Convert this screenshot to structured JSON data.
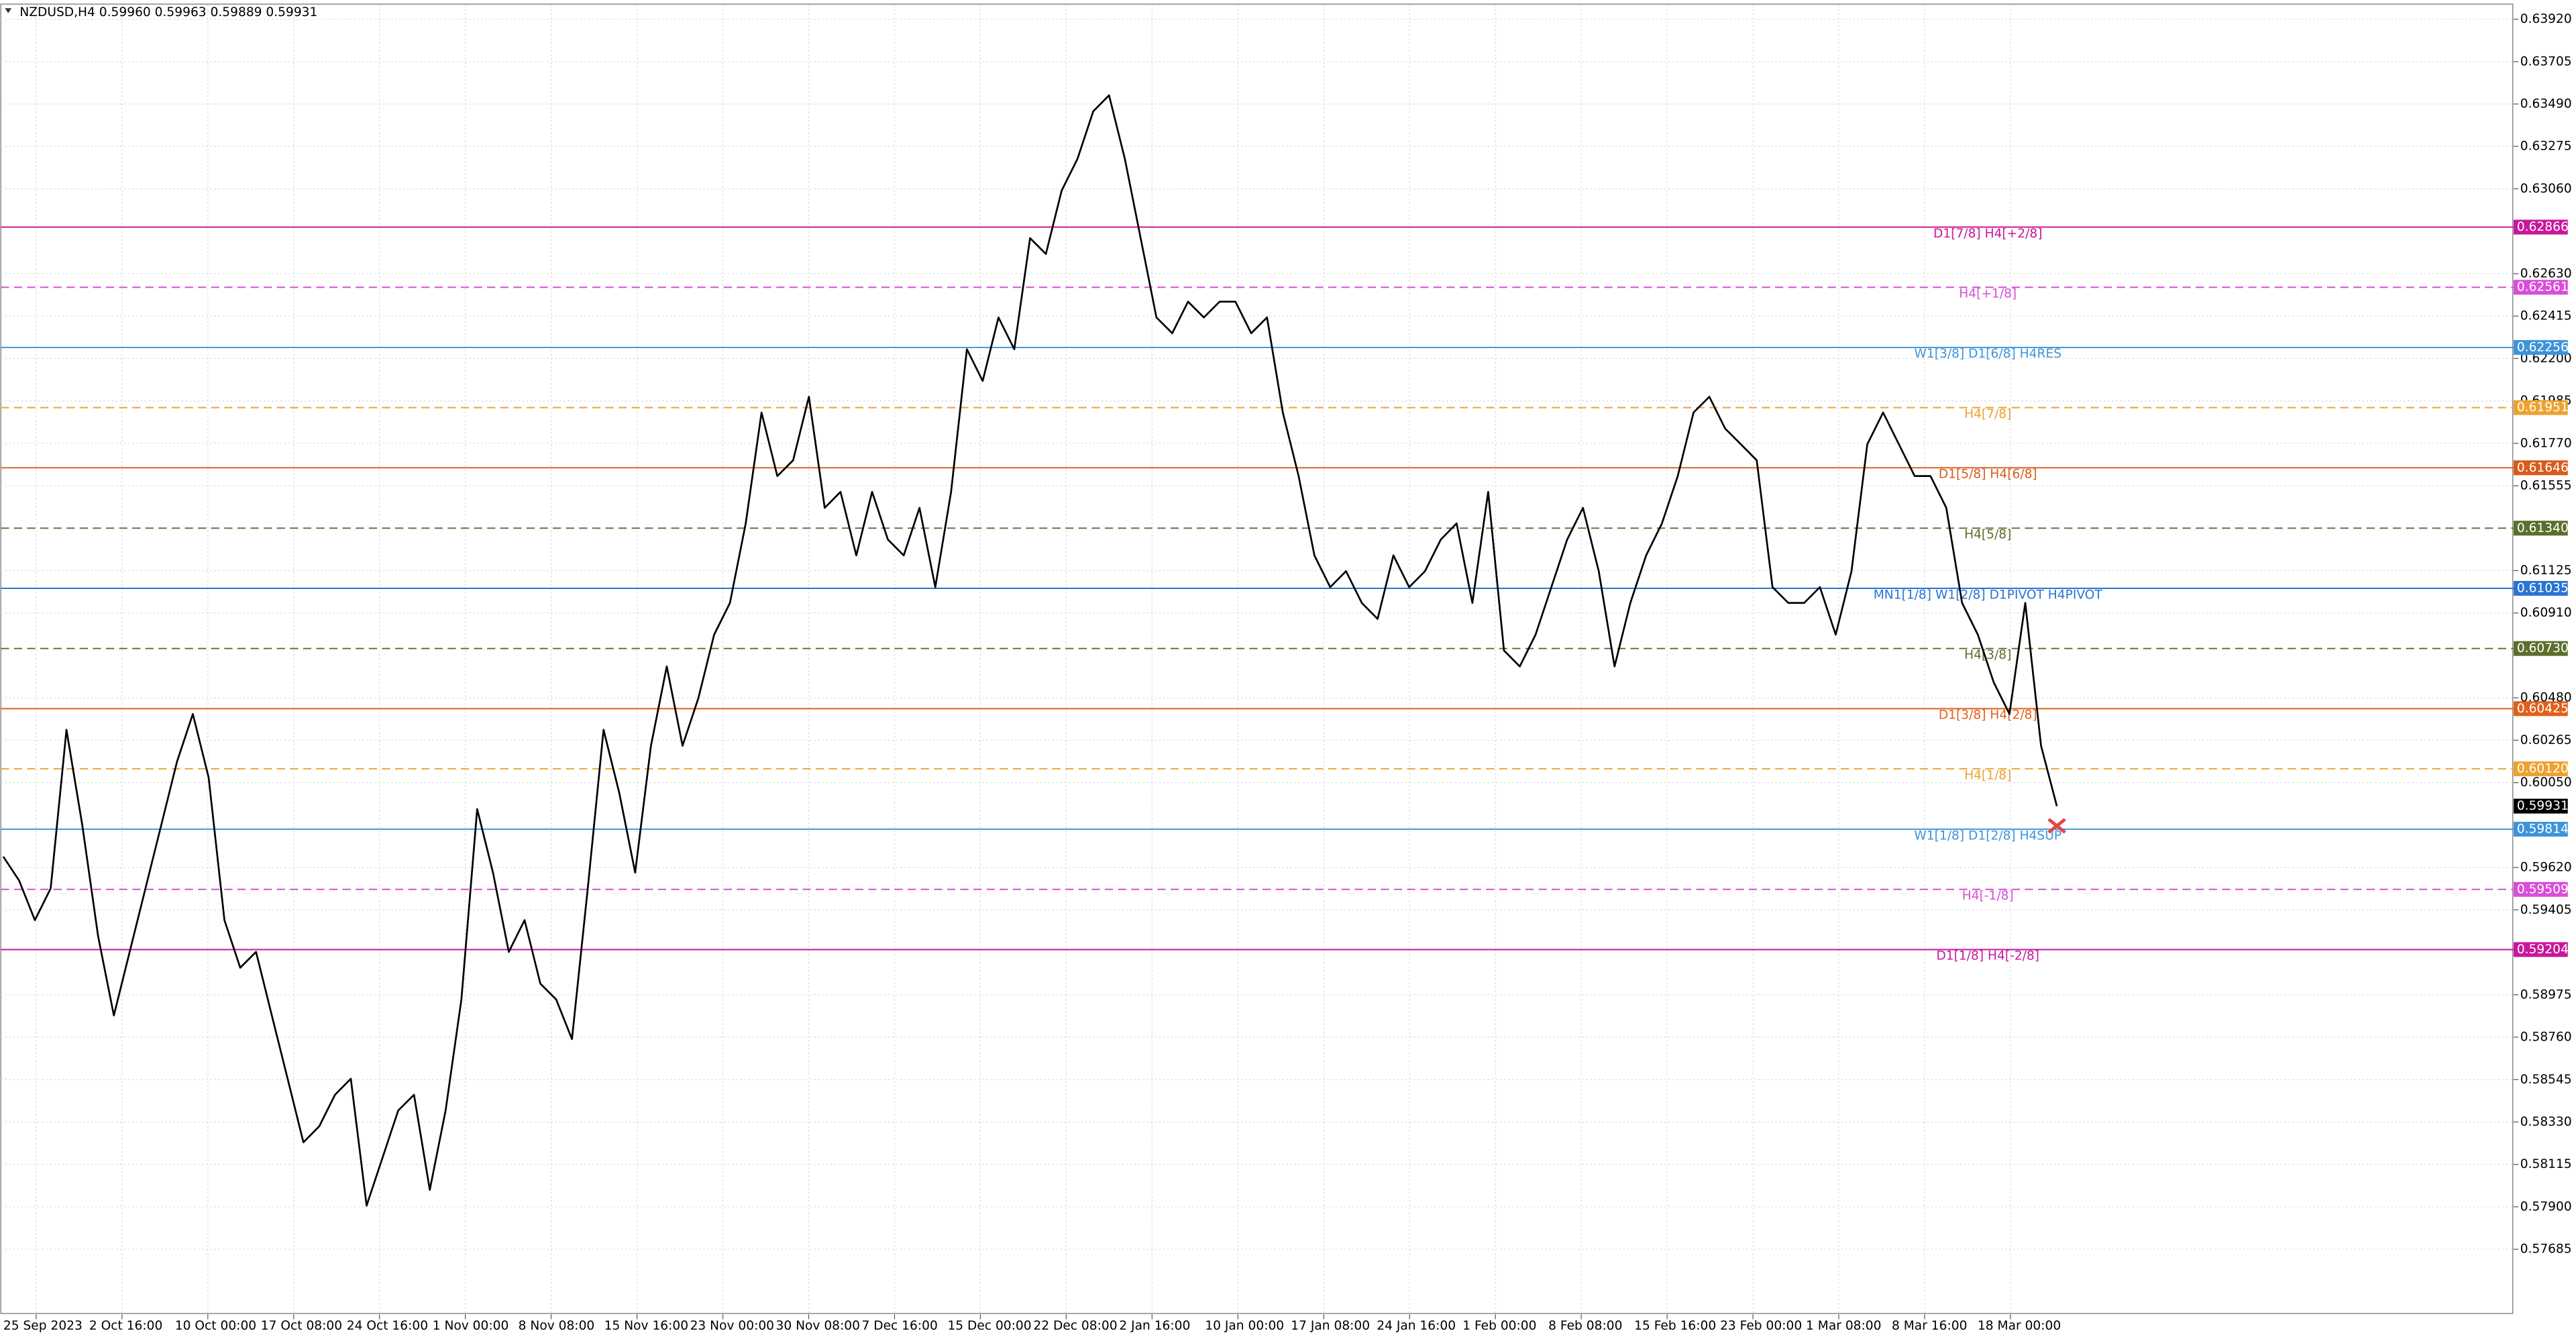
{
  "chart_data": {
    "type": "line",
    "title": "NZDUSD,H4  0.59960 0.59963 0.59889 0.59931",
    "color": "#000000",
    "grid": true,
    "ylim": [
      0.57355,
      0.63992
    ],
    "yticks": [
      {
        "value": 0.6392,
        "label": "0.63920"
      },
      {
        "value": 0.63705,
        "label": "0.63705"
      },
      {
        "value": 0.6349,
        "label": "0.63490"
      },
      {
        "value": 0.63275,
        "label": "0.63275"
      },
      {
        "value": 0.6306,
        "label": "0.63060"
      },
      {
        "value": 0.6263,
        "label": "0.62630"
      },
      {
        "value": 0.62415,
        "label": "0.62415"
      },
      {
        "value": 0.622,
        "label": "0.62200"
      },
      {
        "value": 0.61985,
        "label": "0.61985"
      },
      {
        "value": 0.6177,
        "label": "0.61770"
      },
      {
        "value": 0.61555,
        "label": "0.61555"
      },
      {
        "value": 0.61125,
        "label": "0.61125"
      },
      {
        "value": 0.6091,
        "label": "0.60910"
      },
      {
        "value": 0.6048,
        "label": "0.60480"
      },
      {
        "value": 0.60265,
        "label": "0.60265"
      },
      {
        "value": 0.6005,
        "label": "0.60050"
      },
      {
        "value": 0.5962,
        "label": "0.59620"
      },
      {
        "value": 0.59405,
        "label": "0.59405"
      },
      {
        "value": 0.58975,
        "label": "0.58975"
      },
      {
        "value": 0.5876,
        "label": "0.58760"
      },
      {
        "value": 0.58545,
        "label": "0.58545"
      },
      {
        "value": 0.5833,
        "label": "0.58330"
      },
      {
        "value": 0.58115,
        "label": "0.58115"
      },
      {
        "value": 0.579,
        "label": "0.57900"
      },
      {
        "value": 0.57685,
        "label": "0.57685"
      }
    ],
    "x_labels": [
      "25 Sep 2023",
      "2 Oct 16:00",
      "10 Oct 00:00",
      "17 Oct 08:00",
      "24 Oct 16:00",
      "1 Nov 00:00",
      "8 Nov 08:00",
      "15 Nov 16:00",
      "23 Nov 00:00",
      "30 Nov 08:00",
      "7 Dec 16:00",
      "15 Dec 00:00",
      "22 Dec 08:00",
      "2 Jan 16:00",
      "10 Jan 00:00",
      "17 Jan 08:00",
      "24 Jan 16:00",
      "1 Feb 00:00",
      "8 Feb 08:00",
      "15 Feb 16:00",
      "23 Feb 00:00",
      "1 Mar 08:00",
      "8 Mar 16:00",
      "18 Mar 00:00"
    ],
    "values": [
      0.59675,
      0.59554,
      0.59353,
      0.59514,
      0.60318,
      0.59835,
      0.59273,
      0.5887,
      0.59192,
      0.59514,
      0.59835,
      0.60157,
      0.60398,
      0.60076,
      0.59353,
      0.59112,
      0.59192,
      0.5887,
      0.58549,
      0.58227,
      0.58308,
      0.58468,
      0.58549,
      0.57906,
      0.58147,
      0.58388,
      0.58468,
      0.57986,
      0.58388,
      0.58951,
      0.59916,
      0.59594,
      0.59192,
      0.59353,
      0.59031,
      0.58951,
      0.5875,
      0.59514,
      0.60318,
      0.59996,
      0.59594,
      0.60237,
      0.60639,
      0.60237,
      0.60478,
      0.608,
      0.60961,
      0.61364,
      0.61926,
      0.61604,
      0.61684,
      0.62006,
      0.61443,
      0.61524,
      0.61202,
      0.61524,
      0.61282,
      0.61202,
      0.61443,
      0.61041,
      0.61524,
      0.62247,
      0.62086,
      0.62408,
      0.62247,
      0.6281,
      0.6273,
      0.63051,
      0.63212,
      0.63453,
      0.63534,
      0.63212,
      0.6281,
      0.62408,
      0.62328,
      0.62488,
      0.62408,
      0.62488,
      0.62488,
      0.62328,
      0.62408,
      0.61926,
      0.61604,
      0.61202,
      0.61041,
      0.61122,
      0.60961,
      0.6088,
      0.61202,
      0.61041,
      0.61122,
      0.61282,
      0.61364,
      0.60961,
      0.61524,
      0.6072,
      0.60639,
      0.608,
      0.61041,
      0.61282,
      0.61443,
      0.61122,
      0.60639,
      0.60961,
      0.61202,
      0.61364,
      0.61604,
      0.61926,
      0.62006,
      0.61845,
      0.61765,
      0.61684,
      0.61041,
      0.60961,
      0.60961,
      0.61041,
      0.608,
      0.61122,
      0.61765,
      0.61926,
      0.61765,
      0.61604,
      0.61604,
      0.61443,
      0.60961,
      0.608,
      0.60559,
      0.60398,
      0.60961,
      0.60237,
      0.59931
    ],
    "levels": [
      {
        "name": "D1[7/8] H4[+2/8]",
        "value": 0.62866,
        "value_label": "0.62866",
        "color": "#c8179a",
        "dashed": false
      },
      {
        "name": "H4[+1/8]",
        "value": 0.62561,
        "value_label": "0.62561",
        "color": "#d84ed8",
        "dashed": true
      },
      {
        "name": "W1[3/8] D1[6/8] H4RES",
        "value": 0.62256,
        "value_label": "0.62256",
        "color": "#3d94da",
        "dashed": false
      },
      {
        "name": "H4[7/8]",
        "value": 0.61951,
        "value_label": "0.61951",
        "color": "#eda230",
        "dashed": true
      },
      {
        "name": "D1[5/8] H4[6/8]",
        "value": 0.61646,
        "value_label": "0.61646",
        "color": "#d95a1c",
        "dashed": false
      },
      {
        "name": "H4[5/8]",
        "value": 0.6134,
        "value_label": "0.61340",
        "color": "#5c6e2c",
        "dashed": true
      },
      {
        "name": "MN1[1/8] W1[2/8] D1PIVOT H4PIVOT",
        "value": 0.61035,
        "value_label": "0.61035",
        "color": "#2a74d4",
        "dashed": false
      },
      {
        "name": "H4[3/8]",
        "value": 0.6073,
        "value_label": "0.60730",
        "color": "#5c6e2c",
        "dashed": true
      },
      {
        "name": "D1[3/8] H4[2/8]",
        "value": 0.60425,
        "value_label": "0.60425",
        "color": "#e0601a",
        "dashed": false
      },
      {
        "name": "H4[1/8]",
        "value": 0.6012,
        "value_label": "0.60120",
        "color": "#eda230",
        "dashed": true
      },
      {
        "name": "W1[1/8] D1[2/8] H4SUP",
        "value": 0.59814,
        "value_label": "0.59814",
        "color": "#3d94da",
        "dashed": false
      },
      {
        "name": "H4[-1/8]",
        "value": 0.59509,
        "value_label": "0.59509",
        "color": "#d84ed8",
        "dashed": true
      },
      {
        "name": "D1[1/8] H4[-2/8]",
        "value": 0.59204,
        "value_label": "0.59204",
        "color": "#c8179a",
        "dashed": false
      }
    ],
    "current_price": {
      "value": 0.59931,
      "label": "0.59931"
    }
  }
}
